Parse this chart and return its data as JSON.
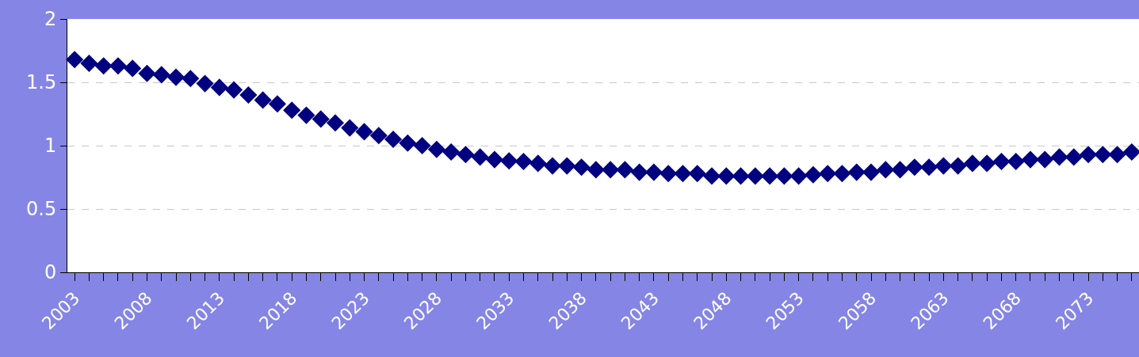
{
  "chart_data": {
    "type": "scatter",
    "categories": [
      "2003",
      null,
      null,
      null,
      null,
      "2008",
      null,
      null,
      null,
      null,
      "2013",
      null,
      null,
      null,
      null,
      "2018",
      null,
      null,
      null,
      null,
      "2023",
      null,
      null,
      null,
      null,
      "2028",
      null,
      null,
      null,
      null,
      "2033",
      null,
      null,
      null,
      null,
      "2038",
      null,
      null,
      null,
      null,
      "2043",
      null,
      null,
      null,
      null,
      "2048",
      null,
      null,
      null,
      null,
      "2053",
      null,
      null,
      null,
      null,
      "2058",
      null,
      null,
      null,
      null,
      "2063",
      null,
      null,
      null,
      null,
      "2068",
      null,
      null,
      null,
      null,
      "2073",
      null,
      null,
      null
    ],
    "series": [
      {
        "color": "#000080",
        "values": [
          1.68,
          1.65,
          1.63,
          1.63,
          1.61,
          1.57,
          1.56,
          1.54,
          1.53,
          1.49,
          1.46,
          1.44,
          1.4,
          1.36,
          1.33,
          1.28,
          1.24,
          1.21,
          1.18,
          1.14,
          1.11,
          1.08,
          1.05,
          1.02,
          1.0,
          0.97,
          0.95,
          0.93,
          0.91,
          0.89,
          0.88,
          0.875,
          0.86,
          0.84,
          0.84,
          0.83,
          0.81,
          0.81,
          0.81,
          0.79,
          0.79,
          0.78,
          0.78,
          0.78,
          0.76,
          0.76,
          0.76,
          0.76,
          0.76,
          0.76,
          0.76,
          0.77,
          0.78,
          0.78,
          0.79,
          0.79,
          0.81,
          0.81,
          0.83,
          0.83,
          0.84,
          0.84,
          0.86,
          0.86,
          0.875,
          0.875,
          0.89,
          0.89,
          0.91,
          0.91,
          0.93,
          0.93,
          0.93,
          0.95
        ]
      }
    ],
    "ylim": [
      0,
      2
    ],
    "yticks": [
      0,
      0.5,
      1,
      1.5,
      2
    ],
    "grid": "y",
    "marker": "diamond",
    "legend": false
  }
}
